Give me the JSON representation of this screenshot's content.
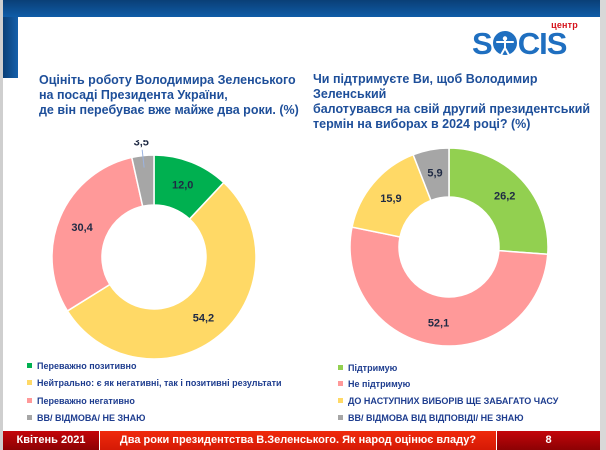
{
  "logo": {
    "top_text": "центр",
    "word_left": "S",
    "word_right": "CIS",
    "brand_color": "#1f6fc0",
    "accent_color": "#d5121b"
  },
  "questions": [
    {
      "title_lines": [
        "Оцініть роботу Володимира Зеленського",
        "на посаді Президента України,",
        "де він перебуває вже майже два роки. (%)"
      ]
    },
    {
      "title_lines": [
        "Чи підтримуєте Ви, щоб Володимир Зеленський",
        "балотувався на свій другий президентський",
        "термін на виборах в 2024 році? (%)"
      ]
    }
  ],
  "chart_data": [
    {
      "type": "pie",
      "variant": "donut",
      "title": "Оцініть роботу Володимира Зеленського на посаді Президента України, де він перебуває вже майже два роки. (%)",
      "categories": [
        "Переважно позитивно",
        "Нейтрально: є як негативні, так і позитивні результати",
        "Переважно негативно",
        "ВВ/ ВІДМОВА/ НЕ ЗНАЮ"
      ],
      "values": [
        12.0,
        54.2,
        30.4,
        3.5
      ],
      "labels": [
        "12,0",
        "54,2",
        "30,4",
        "3,5"
      ],
      "colors": [
        "#00b050",
        "#ffd966",
        "#ff9999",
        "#a6a6a6"
      ],
      "legend": "bottom"
    },
    {
      "type": "pie",
      "variant": "donut",
      "title": "Чи підтримуєте Ви, щоб Володимир Зеленський балотувався на свій другий президентський термін на виборах в 2024 році? (%)",
      "categories": [
        "Підтримую",
        "Не підтримую",
        "ДО НАСТУПНИХ ВИБОРІВ ЩЕ ЗАБАГАТО ЧАСУ",
        "ВВ/ ВІДМОВА ВІД ВІДПОВІДІ/ НЕ ЗНАЮ"
      ],
      "values": [
        26.2,
        52.1,
        15.9,
        5.9
      ],
      "labels": [
        "26,2",
        "52,1",
        "15,9",
        "5,9"
      ],
      "colors": [
        "#92d050",
        "#ff9999",
        "#ffd966",
        "#a6a6a6"
      ],
      "legend": "bottom"
    }
  ],
  "footer": {
    "date": "Квітень 2021",
    "title": "Два роки президентства В.Зеленського. Як народ оцінює владу?",
    "page": "8"
  }
}
